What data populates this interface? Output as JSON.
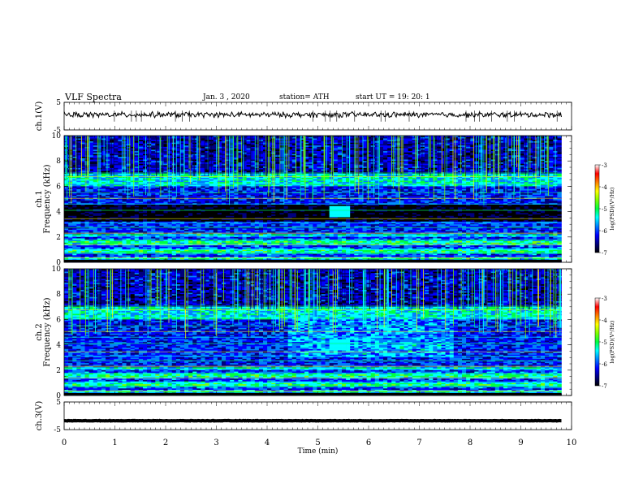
{
  "header": {
    "title": "VLF  Spectra",
    "date": "Jan. 3  , 2020",
    "station": "station= ATH",
    "start": "start  UT  =    19: 20: 1"
  },
  "chart_data": [
    {
      "type": "line",
      "name": "ch1-waveform",
      "ylabel": "ch.1(V)",
      "ylim": [
        -5,
        5
      ],
      "yticks": [
        "5",
        "-5"
      ],
      "xlim": [
        0,
        10
      ],
      "baseline": 0.5,
      "amplitude": 1.2
    },
    {
      "type": "heatmap",
      "name": "ch1-spectrogram",
      "ylabel": "ch.1 Frequency  (kHz)",
      "ylim": [
        0,
        10
      ],
      "yticks": [
        "0",
        "2",
        "4",
        "6",
        "8",
        "10"
      ],
      "xlim": [
        0,
        9.8
      ],
      "colorbar": {
        "label": "log(PSD)(V²/Hz)",
        "range": [
          -7,
          -3
        ],
        "ticks": [
          "-3",
          "-4",
          "-5",
          "-6",
          "-7"
        ]
      }
    },
    {
      "type": "heatmap",
      "name": "ch2-spectrogram",
      "ylabel": "ch.2 Frequency  (kHz)",
      "ylim": [
        0,
        10
      ],
      "yticks": [
        "0",
        "2",
        "4",
        "6",
        "8",
        "10"
      ],
      "xlim": [
        0,
        9.8
      ],
      "colorbar": {
        "label": "log(PSD)(V²/Hz)",
        "range": [
          -7,
          -3
        ],
        "ticks": [
          "-3",
          "-4",
          "-5",
          "-6",
          "-7"
        ]
      }
    },
    {
      "type": "line",
      "name": "ch3-waveform",
      "ylabel": "ch.3(V)",
      "ylim": [
        -5,
        5
      ],
      "yticks": [
        "5",
        "-5"
      ],
      "xlim": [
        0,
        10
      ],
      "baseline": -1.8,
      "amplitude": 0.1
    }
  ],
  "xaxis": {
    "label": "Time  (min)",
    "range": [
      0,
      10
    ],
    "ticks": [
      "0",
      "1",
      "2",
      "3",
      "4",
      "5",
      "6",
      "7",
      "8",
      "9",
      "10"
    ]
  },
  "colors": {
    "colormap": [
      "#000000",
      "#00007f",
      "#0000ff",
      "#0080ff",
      "#00ffff",
      "#00ff40",
      "#80ff00",
      "#ffff00",
      "#ff8000",
      "#ff0000",
      "#ffffff"
    ]
  }
}
